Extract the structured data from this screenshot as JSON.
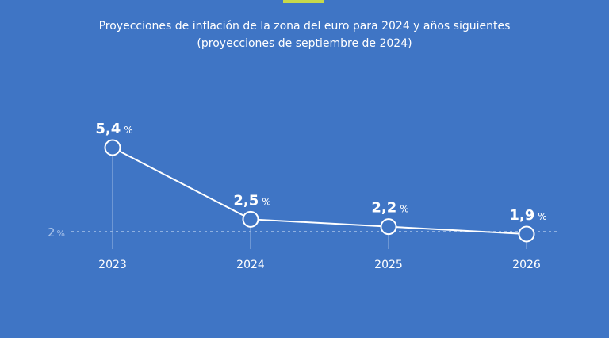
{
  "accent_color": "#c7d94a",
  "background_color": "#3f75c5",
  "chart_data": {
    "type": "line",
    "title": "Proyecciones de inflación de la zona del euro para 2024 y años siguientes",
    "subtitle": "(proyecciones de septiembre de 2024)",
    "categories": [
      "2023",
      "2024",
      "2025",
      "2026"
    ],
    "values": [
      5.4,
      2.5,
      2.2,
      1.9
    ],
    "value_labels": [
      "5,4",
      "2,5",
      "2,2",
      "1,9"
    ],
    "unit": "%",
    "reference_line": {
      "value": 2,
      "label": "2",
      "unit": "%"
    },
    "ylim": [
      1.9,
      5.4
    ],
    "grid": false,
    "legend": "none",
    "line_color": "#ffffff"
  }
}
